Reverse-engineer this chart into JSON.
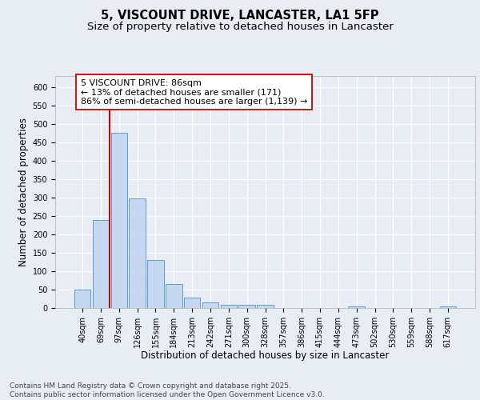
{
  "title_line1": "5, VISCOUNT DRIVE, LANCASTER, LA1 5FP",
  "title_line2": "Size of property relative to detached houses in Lancaster",
  "xlabel": "Distribution of detached houses by size in Lancaster",
  "ylabel": "Number of detached properties",
  "categories": [
    "40sqm",
    "69sqm",
    "97sqm",
    "126sqm",
    "155sqm",
    "184sqm",
    "213sqm",
    "242sqm",
    "271sqm",
    "300sqm",
    "328sqm",
    "357sqm",
    "386sqm",
    "415sqm",
    "444sqm",
    "473sqm",
    "502sqm",
    "530sqm",
    "559sqm",
    "588sqm",
    "617sqm"
  ],
  "values": [
    50,
    240,
    475,
    298,
    130,
    65,
    28,
    15,
    9,
    9,
    8,
    0,
    0,
    0,
    0,
    4,
    0,
    0,
    0,
    0,
    4
  ],
  "bar_color": "#c5d8ef",
  "bar_edge_color": "#5b9bd5",
  "vline_x": 1.5,
  "vline_color": "#cc0000",
  "annotation_text": "5 VISCOUNT DRIVE: 86sqm\n← 13% of detached houses are smaller (171)\n86% of semi-detached houses are larger (1,139) →",
  "annotation_box_color": "#ffffff",
  "annotation_box_edge": "#cc0000",
  "ylim": [
    0,
    630
  ],
  "yticks": [
    0,
    50,
    100,
    150,
    200,
    250,
    300,
    350,
    400,
    450,
    500,
    550,
    600
  ],
  "background_color": "#e8edf4",
  "grid_color": "#ffffff",
  "footer_line1": "Contains HM Land Registry data © Crown copyright and database right 2025.",
  "footer_line2": "Contains public sector information licensed under the Open Government Licence v3.0.",
  "title_fontsize": 10.5,
  "subtitle_fontsize": 9.5,
  "axis_label_fontsize": 8.5,
  "tick_fontsize": 7,
  "annotation_fontsize": 8,
  "footer_fontsize": 6.5
}
